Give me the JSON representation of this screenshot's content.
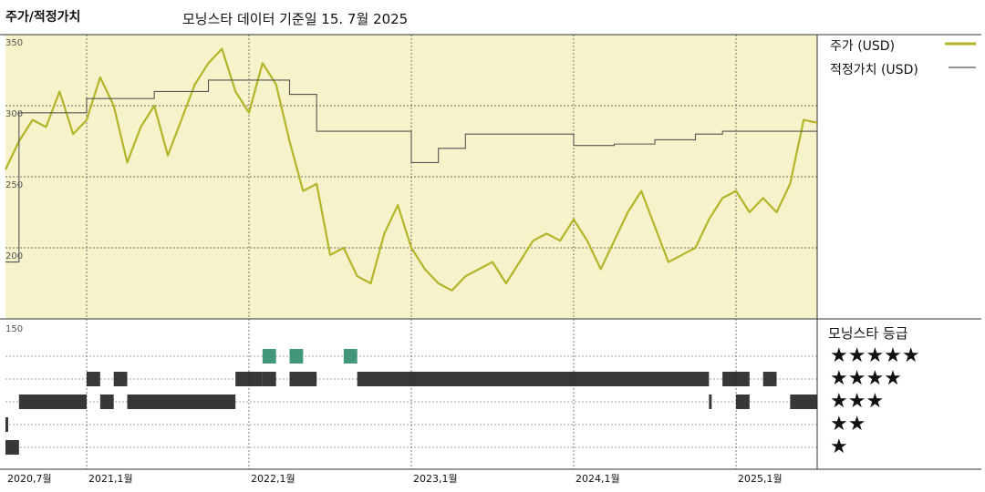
{
  "header": {
    "left_label": "주가/적정가치",
    "center_label": "모닝스타 데이터 기준일 15. 7월 2025"
  },
  "legend": {
    "price_label": "주가 (USD)",
    "fair_value_label": "적정가치 (USD)"
  },
  "colors": {
    "plot_bg": "#f6f2c9",
    "price_line": "#b3b52a",
    "fair_value_line": "#555555",
    "grid": "#444444",
    "rating_bar": "#222222",
    "five_star_bar": "#2e8c6b"
  },
  "rating_panel": {
    "title": "모닝스타 등급",
    "stars": [
      "★★★★★",
      "★★★★",
      "★★★",
      "★★",
      "★"
    ]
  },
  "chart_data": {
    "type": "line",
    "x_start": "2020-07",
    "x_end": "2025-07",
    "x_ticks": [
      "2020,7월",
      "2021,1월",
      "2022,1월",
      "2023,1월",
      "2024,1월",
      "2025,1월"
    ],
    "y_ticks": [
      "350",
      "300",
      "250",
      "200",
      "150"
    ],
    "ylim": [
      150,
      350
    ],
    "grid": true,
    "series": [
      {
        "name": "주가 (USD)",
        "points": [
          [
            "2020-07",
            255
          ],
          [
            "2020-08",
            275
          ],
          [
            "2020-09",
            290
          ],
          [
            "2020-10",
            285
          ],
          [
            "2020-11",
            310
          ],
          [
            "2020-12",
            280
          ],
          [
            "2021-01",
            290
          ],
          [
            "2021-02",
            320
          ],
          [
            "2021-03",
            300
          ],
          [
            "2021-04",
            260
          ],
          [
            "2021-05",
            285
          ],
          [
            "2021-06",
            300
          ],
          [
            "2021-07",
            265
          ],
          [
            "2021-08",
            290
          ],
          [
            "2021-09",
            315
          ],
          [
            "2021-10",
            330
          ],
          [
            "2021-11",
            340
          ],
          [
            "2021-12",
            310
          ],
          [
            "2022-01",
            295
          ],
          [
            "2022-02",
            330
          ],
          [
            "2022-03",
            315
          ],
          [
            "2022-04",
            275
          ],
          [
            "2022-05",
            240
          ],
          [
            "2022-06",
            245
          ],
          [
            "2022-07",
            195
          ],
          [
            "2022-08",
            200
          ],
          [
            "2022-09",
            180
          ],
          [
            "2022-10",
            175
          ],
          [
            "2022-11",
            210
          ],
          [
            "2022-12",
            230
          ],
          [
            "2023-01",
            200
          ],
          [
            "2023-02",
            185
          ],
          [
            "2023-03",
            175
          ],
          [
            "2023-04",
            170
          ],
          [
            "2023-05",
            180
          ],
          [
            "2023-06",
            185
          ],
          [
            "2023-07",
            190
          ],
          [
            "2023-08",
            175
          ],
          [
            "2023-09",
            190
          ],
          [
            "2023-10",
            205
          ],
          [
            "2023-11",
            210
          ],
          [
            "2023-12",
            205
          ],
          [
            "2024-01",
            220
          ],
          [
            "2024-02",
            205
          ],
          [
            "2024-03",
            185
          ],
          [
            "2024-04",
            205
          ],
          [
            "2024-05",
            225
          ],
          [
            "2024-06",
            240
          ],
          [
            "2024-07",
            215
          ],
          [
            "2024-08",
            190
          ],
          [
            "2024-09",
            195
          ],
          [
            "2024-10",
            200
          ],
          [
            "2024-11",
            220
          ],
          [
            "2024-12",
            235
          ],
          [
            "2025-01",
            240
          ],
          [
            "2025-02",
            225
          ],
          [
            "2025-03",
            235
          ],
          [
            "2025-04",
            225
          ],
          [
            "2025-05",
            245
          ],
          [
            "2025-06",
            290
          ],
          [
            "2025-07",
            288
          ]
        ]
      },
      {
        "name": "적정가치 (USD)",
        "points": [
          [
            "2020-07",
            190
          ],
          [
            "2020-08",
            295
          ],
          [
            "2021-01",
            305
          ],
          [
            "2021-06",
            310
          ],
          [
            "2021-10",
            318
          ],
          [
            "2022-04",
            308
          ],
          [
            "2022-06",
            282
          ],
          [
            "2022-12",
            282
          ],
          [
            "2023-01",
            260
          ],
          [
            "2023-03",
            270
          ],
          [
            "2023-05",
            280
          ],
          [
            "2023-11",
            280
          ],
          [
            "2024-01",
            272
          ],
          [
            "2024-04",
            273
          ],
          [
            "2024-07",
            276
          ],
          [
            "2024-10",
            280
          ],
          [
            "2024-12",
            282
          ],
          [
            "2025-07",
            285
          ]
        ]
      }
    ],
    "ratings": [
      {
        "stars": 1,
        "ranges": [
          [
            "2020-07",
            "2020-08"
          ]
        ]
      },
      {
        "stars": 2,
        "ranges": [
          [
            "2020-07",
            "2020-07"
          ]
        ]
      },
      {
        "stars": 3,
        "ranges": [
          [
            "2020-08",
            "2021-01"
          ],
          [
            "2021-02",
            "2021-03"
          ],
          [
            "2021-04",
            "2021-12"
          ],
          [
            "2024-11",
            "2024-11"
          ],
          [
            "2025-01",
            "2025-02"
          ],
          [
            "2025-05",
            "2025-07"
          ]
        ]
      },
      {
        "stars": 4,
        "ranges": [
          [
            "2021-01",
            "2021-02"
          ],
          [
            "2021-03",
            "2021-04"
          ],
          [
            "2021-12",
            "2022-02"
          ],
          [
            "2022-02",
            "2022-03"
          ],
          [
            "2022-04",
            "2022-06"
          ],
          [
            "2022-09",
            "2024-11"
          ],
          [
            "2024-12",
            "2025-02"
          ],
          [
            "2025-03",
            "2025-04"
          ]
        ]
      },
      {
        "stars": 5,
        "ranges": [
          [
            "2022-02",
            "2022-03"
          ],
          [
            "2022-04",
            "2022-05"
          ],
          [
            "2022-08",
            "2022-09"
          ]
        ]
      }
    ]
  }
}
